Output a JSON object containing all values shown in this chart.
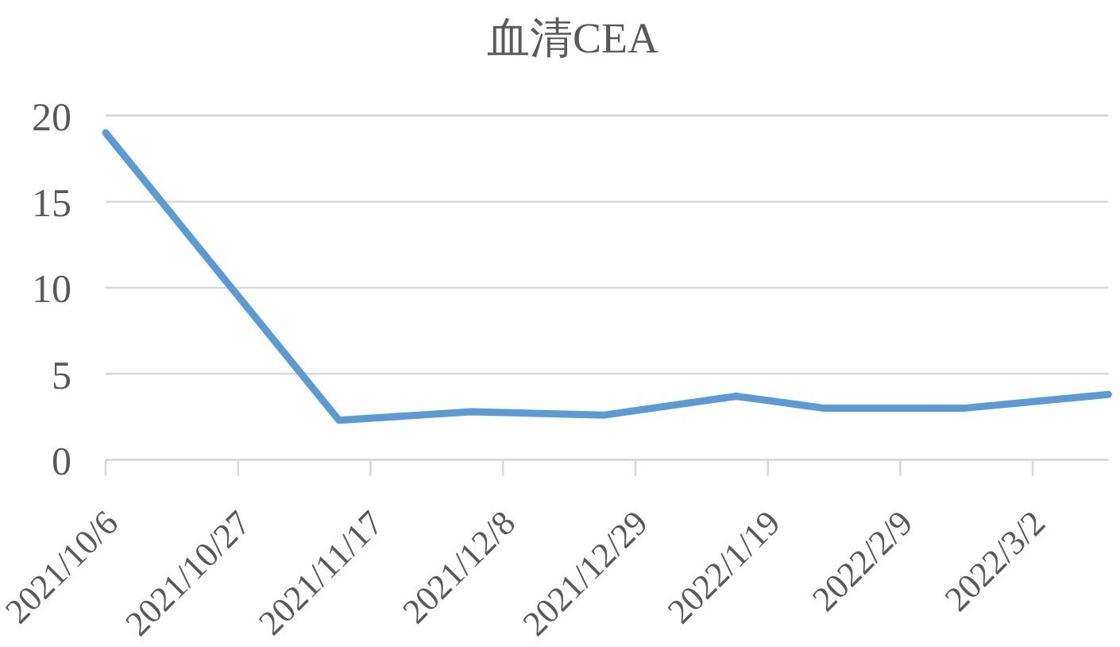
{
  "chart_data": {
    "type": "line",
    "title": "血清CEA",
    "x": [
      "2021-10-06",
      "2021-11-12",
      "2021-12-03",
      "2021-12-24",
      "2022-01-14",
      "2022-01-28",
      "2022-02-19",
      "2022-03-14"
    ],
    "values": [
      19.0,
      2.3,
      2.8,
      2.6,
      3.7,
      3.0,
      3.0,
      3.8
    ],
    "color": "#5b9bd5",
    "xlim": [
      "2021-10-06",
      "2022-03-14"
    ],
    "xticks": [
      {
        "value": "2021-10-06",
        "label": "2021/10/6"
      },
      {
        "value": "2021-10-27",
        "label": "2021/10/27"
      },
      {
        "value": "2021-11-17",
        "label": "2021/11/17"
      },
      {
        "value": "2021-12-08",
        "label": "2021/12/8"
      },
      {
        "value": "2021-12-29",
        "label": "2021/12/29"
      },
      {
        "value": "2022-01-19",
        "label": "2022/1/19"
      },
      {
        "value": "2022-02-09",
        "label": "2022/2/9"
      },
      {
        "value": "2022-03-02",
        "label": "2022/3/2"
      }
    ],
    "ylim": [
      0,
      20
    ],
    "yticks": [
      0,
      5,
      10,
      15,
      20
    ],
    "grid": "y"
  }
}
